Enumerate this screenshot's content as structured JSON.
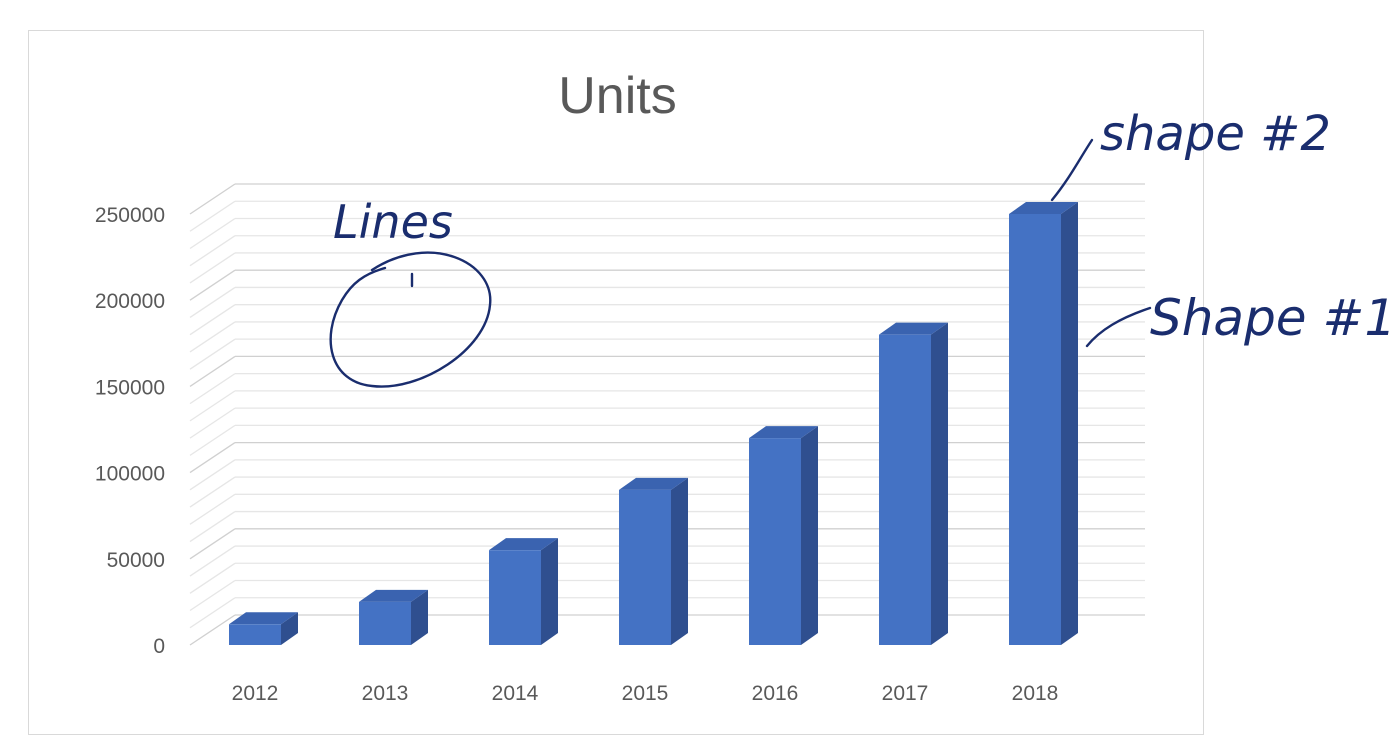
{
  "chart_data": {
    "type": "bar",
    "style": "3d-column",
    "title": "Units",
    "xlabel": "",
    "ylabel": "",
    "categories": [
      "2012",
      "2013",
      "2014",
      "2015",
      "2016",
      "2017",
      "2018"
    ],
    "values": [
      12000,
      25000,
      55000,
      90000,
      120000,
      180000,
      250000
    ],
    "ylim": [
      0,
      250000
    ],
    "yticks": [
      "0",
      "50000",
      "100000",
      "150000",
      "200000",
      "250000"
    ],
    "grid": true,
    "legend": "none",
    "colors": {
      "front": "#4472c4",
      "side": "#2f4f8f",
      "top": "#3a63b0"
    }
  },
  "annotations": {
    "lines_label": "Lines",
    "shape2_label": "shape #2",
    "shape1_label": "Shape #1",
    "ink_color": "#1a2d6e"
  }
}
